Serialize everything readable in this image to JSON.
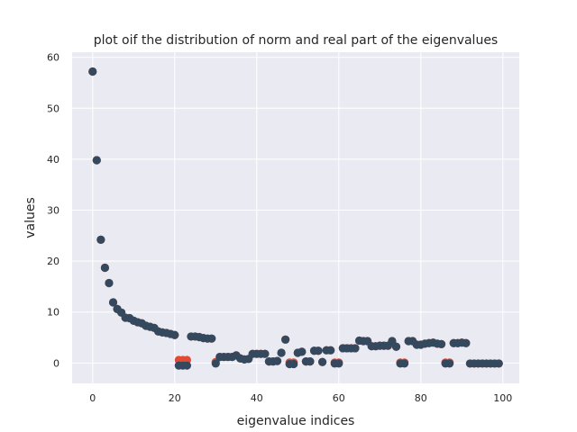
{
  "chart_data": {
    "type": "scatter",
    "title": "plot oif the distribution of norm and real part of the eigenvalues",
    "xlabel": "eigenvalue indices",
    "ylabel": "values",
    "xlim": [
      -5,
      104
    ],
    "ylim": [
      -4,
      61
    ],
    "xticks": [
      0,
      20,
      40,
      60,
      80,
      100
    ],
    "yticks": [
      0,
      10,
      20,
      30,
      40,
      50,
      60
    ],
    "grid": true,
    "background": "#eaeaf2",
    "series": [
      {
        "color": "#e24a33",
        "points": [
          [
            0,
            57.2
          ],
          [
            1,
            39.8
          ],
          [
            2,
            24.2
          ],
          [
            3,
            18.7
          ],
          [
            4,
            15.7
          ],
          [
            5,
            11.9
          ],
          [
            6,
            10.6
          ],
          [
            7,
            9.9
          ],
          [
            8,
            8.9
          ],
          [
            9,
            8.8
          ],
          [
            10,
            8.3
          ],
          [
            11,
            8.0
          ],
          [
            12,
            7.8
          ],
          [
            13,
            7.3
          ],
          [
            14,
            7.1
          ],
          [
            15,
            6.9
          ],
          [
            16,
            6.2
          ],
          [
            17,
            6.0
          ],
          [
            18,
            5.9
          ],
          [
            19,
            5.7
          ],
          [
            20,
            5.5
          ],
          [
            21,
            0.6
          ],
          [
            22,
            0.6
          ],
          [
            23,
            0.6
          ],
          [
            24,
            5.2
          ],
          [
            25,
            5.2
          ],
          [
            26,
            5.1
          ],
          [
            27,
            4.9
          ],
          [
            28,
            4.8
          ],
          [
            29,
            4.8
          ],
          [
            30,
            0.2
          ],
          [
            31,
            1.2
          ],
          [
            32,
            1.2
          ],
          [
            33,
            1.2
          ],
          [
            34,
            1.2
          ],
          [
            35,
            1.5
          ],
          [
            36,
            0.9
          ],
          [
            37,
            0.7
          ],
          [
            38,
            0.8
          ],
          [
            39,
            1.8
          ],
          [
            40,
            1.8
          ],
          [
            41,
            1.8
          ],
          [
            42,
            1.8
          ],
          [
            43,
            0.3
          ],
          [
            44,
            0.3
          ],
          [
            45,
            0.4
          ],
          [
            46,
            2.0
          ],
          [
            47,
            4.6
          ],
          [
            48,
            0.1
          ],
          [
            49,
            0.1
          ],
          [
            50,
            2.0
          ],
          [
            51,
            2.2
          ],
          [
            52,
            0.3
          ],
          [
            53,
            0.3
          ],
          [
            54,
            2.4
          ],
          [
            55,
            2.4
          ],
          [
            56,
            0.2
          ],
          [
            57,
            2.5
          ],
          [
            58,
            2.5
          ],
          [
            59,
            0.1
          ],
          [
            60,
            0.1
          ],
          [
            61,
            2.9
          ],
          [
            62,
            2.9
          ],
          [
            63,
            2.9
          ],
          [
            64,
            2.9
          ],
          [
            65,
            4.4
          ],
          [
            66,
            4.3
          ],
          [
            67,
            4.3
          ],
          [
            68,
            3.3
          ],
          [
            69,
            3.3
          ],
          [
            70,
            3.4
          ],
          [
            71,
            3.4
          ],
          [
            72,
            3.4
          ],
          [
            73,
            4.3
          ],
          [
            74,
            3.2
          ],
          [
            75,
            0.1
          ],
          [
            76,
            0.1
          ],
          [
            77,
            4.3
          ],
          [
            78,
            4.3
          ],
          [
            79,
            3.6
          ],
          [
            80,
            3.6
          ],
          [
            81,
            3.8
          ],
          [
            82,
            3.9
          ],
          [
            83,
            4.0
          ],
          [
            84,
            3.8
          ],
          [
            85,
            3.7
          ],
          [
            86,
            0.1
          ],
          [
            87,
            0.1
          ],
          [
            88,
            3.9
          ],
          [
            89,
            3.9
          ],
          [
            90,
            4.0
          ],
          [
            91,
            3.9
          ],
          [
            92,
            -0.1
          ],
          [
            93,
            -0.1
          ],
          [
            94,
            -0.1
          ],
          [
            95,
            -0.1
          ],
          [
            96,
            -0.1
          ],
          [
            97,
            -0.1
          ],
          [
            98,
            -0.1
          ],
          [
            99,
            -0.1
          ]
        ]
      },
      {
        "color": "#34495e",
        "points": [
          [
            0,
            57.2
          ],
          [
            1,
            39.8
          ],
          [
            2,
            24.2
          ],
          [
            3,
            18.7
          ],
          [
            4,
            15.7
          ],
          [
            5,
            11.9
          ],
          [
            6,
            10.6
          ],
          [
            7,
            9.9
          ],
          [
            8,
            8.9
          ],
          [
            9,
            8.8
          ],
          [
            10,
            8.3
          ],
          [
            11,
            8.0
          ],
          [
            12,
            7.8
          ],
          [
            13,
            7.3
          ],
          [
            14,
            7.1
          ],
          [
            15,
            6.9
          ],
          [
            16,
            6.2
          ],
          [
            17,
            6.0
          ],
          [
            18,
            5.9
          ],
          [
            19,
            5.7
          ],
          [
            20,
            5.5
          ],
          [
            21,
            -0.5
          ],
          [
            22,
            -0.5
          ],
          [
            23,
            -0.5
          ],
          [
            24,
            5.2
          ],
          [
            25,
            5.2
          ],
          [
            26,
            5.1
          ],
          [
            27,
            4.9
          ],
          [
            28,
            4.8
          ],
          [
            29,
            4.8
          ],
          [
            30,
            -0.1
          ],
          [
            31,
            1.2
          ],
          [
            32,
            1.2
          ],
          [
            33,
            1.2
          ],
          [
            34,
            1.2
          ],
          [
            35,
            1.5
          ],
          [
            36,
            0.9
          ],
          [
            37,
            0.7
          ],
          [
            38,
            0.8
          ],
          [
            39,
            1.8
          ],
          [
            40,
            1.8
          ],
          [
            41,
            1.8
          ],
          [
            42,
            1.8
          ],
          [
            43,
            0.3
          ],
          [
            44,
            0.3
          ],
          [
            45,
            0.4
          ],
          [
            46,
            2.0
          ],
          [
            47,
            4.6
          ],
          [
            48,
            -0.2
          ],
          [
            49,
            -0.2
          ],
          [
            50,
            2.0
          ],
          [
            51,
            2.2
          ],
          [
            52,
            0.3
          ],
          [
            53,
            0.3
          ],
          [
            54,
            2.4
          ],
          [
            55,
            2.4
          ],
          [
            56,
            0.2
          ],
          [
            57,
            2.5
          ],
          [
            58,
            2.5
          ],
          [
            59,
            -0.1
          ],
          [
            60,
            -0.1
          ],
          [
            61,
            2.9
          ],
          [
            62,
            2.9
          ],
          [
            63,
            2.9
          ],
          [
            64,
            2.9
          ],
          [
            65,
            4.4
          ],
          [
            66,
            4.3
          ],
          [
            67,
            4.3
          ],
          [
            68,
            3.3
          ],
          [
            69,
            3.3
          ],
          [
            70,
            3.4
          ],
          [
            71,
            3.4
          ],
          [
            72,
            3.4
          ],
          [
            73,
            4.3
          ],
          [
            74,
            3.2
          ],
          [
            75,
            -0.1
          ],
          [
            76,
            -0.1
          ],
          [
            77,
            4.3
          ],
          [
            78,
            4.3
          ],
          [
            79,
            3.6
          ],
          [
            80,
            3.6
          ],
          [
            81,
            3.8
          ],
          [
            82,
            3.9
          ],
          [
            83,
            4.0
          ],
          [
            84,
            3.8
          ],
          [
            85,
            3.7
          ],
          [
            86,
            -0.1
          ],
          [
            87,
            -0.1
          ],
          [
            88,
            3.9
          ],
          [
            89,
            3.9
          ],
          [
            90,
            4.0
          ],
          [
            91,
            3.9
          ],
          [
            92,
            -0.1
          ],
          [
            93,
            -0.1
          ],
          [
            94,
            -0.1
          ],
          [
            95,
            -0.1
          ],
          [
            96,
            -0.1
          ],
          [
            97,
            -0.1
          ],
          [
            98,
            -0.1
          ],
          [
            99,
            -0.1
          ]
        ]
      }
    ]
  }
}
